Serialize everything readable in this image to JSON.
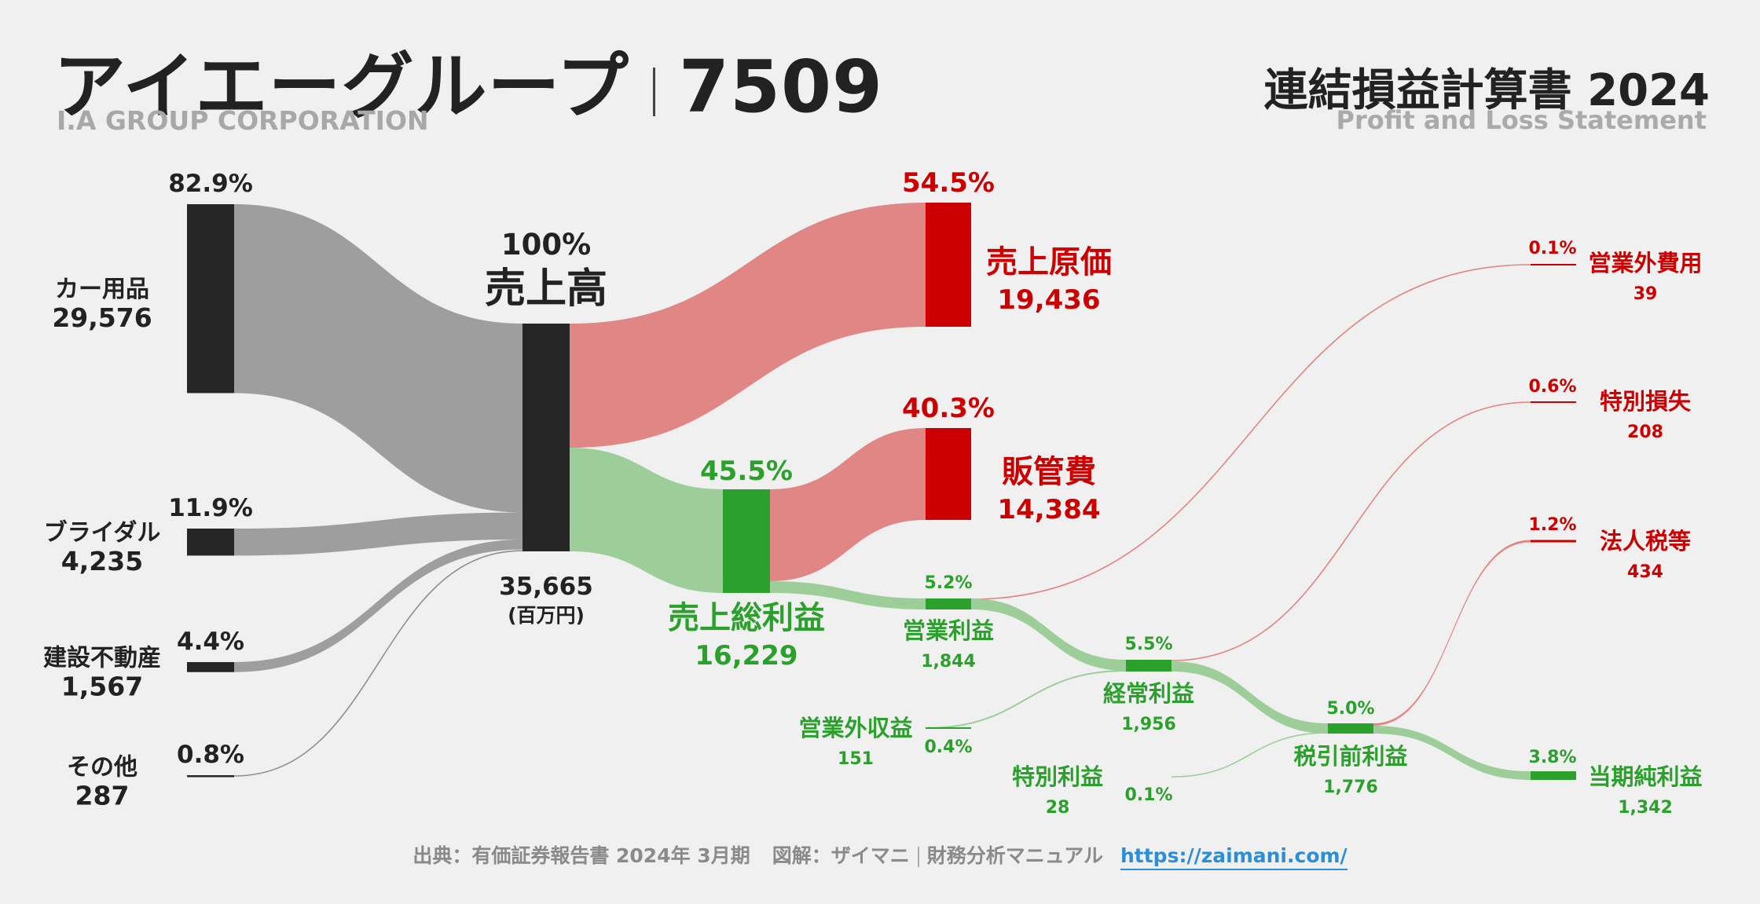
{
  "header": {
    "company": "アイエーグループ",
    "code": "7509",
    "company_en": "I.A GROUP CORPORATION",
    "statement": "連結損益計算書 2024",
    "statement_en": "Profit and Loss Statement"
  },
  "footer": {
    "source": "出典：有価証券報告書 2024年 3月期",
    "credit": "図解：ザイマニ",
    "site_name": "財務分析マニュアル",
    "url": "https://zaimani.com/"
  },
  "colors": {
    "bg": "#f0f0f0",
    "dark_node": "#262626",
    "gray_flow": "#9e9e9e",
    "red": "#cc0000",
    "red_flow": "#e08684",
    "green": "#2ca02c",
    "green_flow": "#9dce99"
  },
  "chart_data": {
    "type": "sankey",
    "unit": "(百万円)",
    "revenue_sources": [
      {
        "name": "カー用品",
        "value": 29576,
        "pct": "82.9%"
      },
      {
        "name": "ブライダル",
        "value": 4235,
        "pct": "11.9%"
      },
      {
        "name": "建設不動産",
        "value": 1567,
        "pct": "4.4%"
      },
      {
        "name": "その他",
        "value": 287,
        "pct": "0.8%"
      }
    ],
    "revenue": {
      "name": "売上高",
      "value": 35665,
      "pct": "100%"
    },
    "cost_of_sales": {
      "name": "売上原価",
      "value": 19436,
      "pct": "54.5%"
    },
    "gross_profit": {
      "name": "売上総利益",
      "value": 16229,
      "pct": "45.5%"
    },
    "sga": {
      "name": "販管費",
      "value": 14384,
      "pct": "40.3%"
    },
    "operating_income": {
      "name": "営業利益",
      "value": 1844,
      "pct": "5.2%"
    },
    "non_operating_expenses": {
      "name": "営業外費用",
      "value": 39,
      "pct": "0.1%"
    },
    "non_operating_income": {
      "name": "営業外収益",
      "value": 151,
      "pct": "0.4%"
    },
    "ordinary_income": {
      "name": "経常利益",
      "value": 1956,
      "pct": "5.5%"
    },
    "extraordinary_loss": {
      "name": "特別損失",
      "value": 208,
      "pct": "0.6%"
    },
    "extraordinary_income": {
      "name": "特別利益",
      "value": 28,
      "pct": "0.1%"
    },
    "pretax_income": {
      "name": "税引前利益",
      "value": 1776,
      "pct": "5.0%"
    },
    "income_taxes": {
      "name": "法人税等",
      "value": 434,
      "pct": "1.2%"
    },
    "net_income": {
      "name": "当期純利益",
      "value": 1342,
      "pct": "3.8%"
    }
  }
}
